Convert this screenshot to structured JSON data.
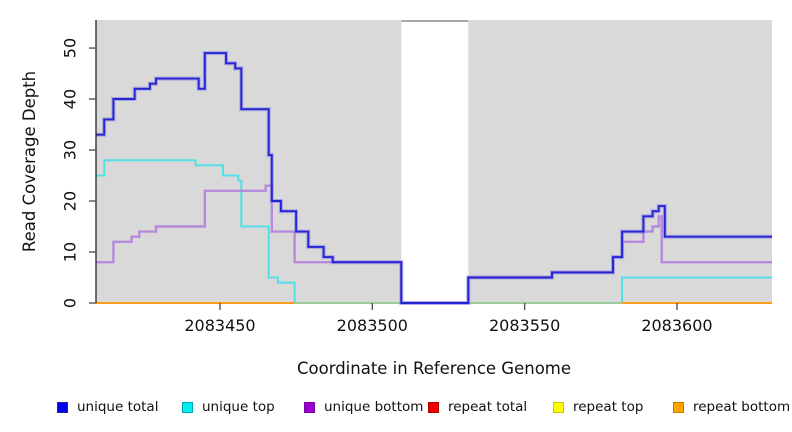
{
  "chart_data": {
    "type": "line",
    "subtype": "step-coverage",
    "title": "",
    "xlabel": "Coordinate in Reference Genome",
    "ylabel": "Read Coverage Depth",
    "xlim": [
      2083409.3,
      2083631.2
    ],
    "ylim": [
      0,
      55.5
    ],
    "x_ticks": [
      2083450,
      2083500,
      2083550,
      2083600
    ],
    "y_ticks": [
      0,
      10,
      20,
      30,
      40,
      50
    ],
    "grid": "off",
    "panel_bg": "#D9D9D9",
    "axis_color": "#333333",
    "tick_color": "#555555",
    "gap_region": {
      "start": 2083509.5,
      "end": 2083531.5,
      "color": "#FFFFFF",
      "top_line_color": "#A8A8A8"
    },
    "series": [
      {
        "name": "unique total",
        "color": "#2525D2",
        "halo": "#7B6FE6",
        "width": 1.9,
        "steps": [
          [
            2083409.3,
            33
          ],
          [
            2083412,
            36
          ],
          [
            2083415,
            40
          ],
          [
            2083422,
            42
          ],
          [
            2083427,
            43
          ],
          [
            2083429,
            44
          ],
          [
            2083443,
            42
          ],
          [
            2083445,
            49
          ],
          [
            2083452,
            47
          ],
          [
            2083455,
            46
          ],
          [
            2083457,
            38
          ],
          [
            2083466,
            29
          ],
          [
            2083467,
            20
          ],
          [
            2083470,
            18
          ],
          [
            2083475,
            14
          ],
          [
            2083479,
            11
          ],
          [
            2083484,
            9
          ],
          [
            2083487,
            8
          ],
          [
            2083509.5,
            0
          ],
          [
            2083531.5,
            5
          ],
          [
            2083559,
            6
          ],
          [
            2083579,
            9
          ],
          [
            2083582,
            14
          ],
          [
            2083589,
            17
          ],
          [
            2083592,
            18
          ],
          [
            2083594,
            19
          ],
          [
            2083596,
            13
          ]
        ]
      },
      {
        "name": "unique top",
        "color": "#52DFE8",
        "width": 2,
        "steps": [
          [
            2083409.3,
            25
          ],
          [
            2083412,
            28
          ],
          [
            2083442,
            27
          ],
          [
            2083451,
            25
          ],
          [
            2083456,
            24
          ],
          [
            2083457,
            15
          ],
          [
            2083466,
            5
          ],
          [
            2083469,
            4
          ],
          [
            2083474.5,
            0
          ],
          [
            2083582,
            5
          ]
        ]
      },
      {
        "name": "unique bottom",
        "color": "#B78BDC",
        "width": 2.4,
        "steps": [
          [
            2083409.3,
            8
          ],
          [
            2083415,
            12
          ],
          [
            2083421,
            13
          ],
          [
            2083423.5,
            14
          ],
          [
            2083429,
            15
          ],
          [
            2083445,
            22
          ],
          [
            2083465,
            23
          ],
          [
            2083467,
            14
          ],
          [
            2083474.5,
            8
          ],
          [
            2083509.5,
            0
          ],
          [
            2083531.5,
            5
          ],
          [
            2083559,
            6
          ],
          [
            2083579,
            9
          ],
          [
            2083582,
            12
          ],
          [
            2083589,
            14
          ],
          [
            2083592,
            15
          ],
          [
            2083594,
            17
          ],
          [
            2083595,
            8
          ]
        ]
      },
      {
        "name": "repeat total",
        "color": "#EE0000",
        "width": 2,
        "steps": [
          [
            2083409.3,
            0
          ]
        ]
      },
      {
        "name": "repeat top",
        "color": "#FFFF00",
        "width": 2,
        "steps": [
          [
            2083409.3,
            0
          ]
        ]
      },
      {
        "name": "repeat bottom",
        "color": "#FF9D1A",
        "width": 2,
        "steps": [
          [
            2083409.3,
            0
          ]
        ]
      }
    ],
    "baseline_segments": [
      [
        2083409.3,
        2083474.5,
        "#FF9D1A"
      ],
      [
        2083474.5,
        2083509.5,
        "#9CCD9C"
      ],
      [
        2083509.5,
        2083531.5,
        "#5B48DF"
      ],
      [
        2083531.5,
        2083582.0,
        "#9CCD9C"
      ],
      [
        2083582.0,
        2083631.2,
        "#FF9D1A"
      ]
    ],
    "legend": [
      {
        "label": "unique total",
        "color": "#0000EE",
        "border": "#2222B2"
      },
      {
        "label": "unique top",
        "color": "#00EEEE",
        "border": "#00A8B0"
      },
      {
        "label": "unique bottom",
        "color": "#9900CC",
        "border": "#7A00A8"
      },
      {
        "label": "repeat total",
        "color": "#EE0000",
        "border": "#B20000"
      },
      {
        "label": "repeat top",
        "color": "#FFFF00",
        "border": "#C8C800"
      },
      {
        "label": "repeat bottom",
        "color": "#FFA500",
        "border": "#C87800"
      }
    ]
  }
}
